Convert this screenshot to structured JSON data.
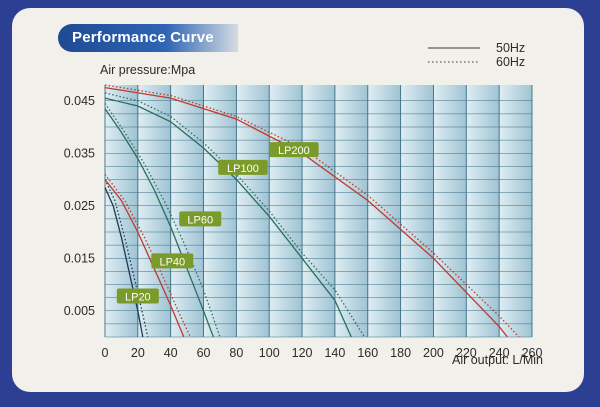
{
  "header": {
    "title": "Performance Curve"
  },
  "colors": {
    "background": "#2d3f93",
    "card": "#f2f0ea",
    "title_tab": "#1f4a93",
    "plot_light": "#dfeef3",
    "plot_dark": "#9fc3d3",
    "label_badge": "#7a9a2a",
    "curve_red": "#c0392b",
    "curve_green": "#2b6e5d",
    "curve_dark": "#1e3b52"
  },
  "chart_data": {
    "type": "line",
    "ylabel": "Air pressure:Mpa",
    "xlabel": "Air output: L/Min",
    "x_ticks": [
      "0",
      "20",
      "40",
      "60",
      "80",
      "100",
      "120",
      "140",
      "160",
      "180",
      "200",
      "220",
      "240",
      "260"
    ],
    "y_ticks": [
      "0.045",
      "0.035",
      "0.025",
      "0.015",
      "0.005"
    ],
    "xlim": [
      0,
      260
    ],
    "ylim": [
      0,
      0.048
    ],
    "grid": true,
    "legend": {
      "position": "top-right",
      "entries": [
        {
          "label": "50Hz",
          "style": "solid"
        },
        {
          "label": "60Hz",
          "style": "dotted"
        }
      ]
    },
    "series": [
      {
        "name": "LP20",
        "label_at": [
          20,
          0.0078
        ],
        "color": "#1e3b52",
        "curves": [
          {
            "style": "solid",
            "points": [
              [
                0,
                0.0285
              ],
              [
                5,
                0.025
              ],
              [
                10,
                0.019
              ],
              [
                15,
                0.012
              ],
              [
                20,
                0.005
              ],
              [
                23,
                0
              ]
            ]
          },
          {
            "style": "dotted",
            "points": [
              [
                0,
                0.03
              ],
              [
                6,
                0.026
              ],
              [
                12,
                0.019
              ],
              [
                18,
                0.011
              ],
              [
                24,
                0.003
              ],
              [
                26,
                0
              ]
            ]
          }
        ]
      },
      {
        "name": "LP40",
        "label_at": [
          41,
          0.0145
        ],
        "color": "#c0392b",
        "curves": [
          {
            "style": "solid",
            "points": [
              [
                0,
                0.03
              ],
              [
                10,
                0.026
              ],
              [
                20,
                0.02
              ],
              [
                30,
                0.013
              ],
              [
                40,
                0.006
              ],
              [
                48,
                0
              ]
            ]
          },
          {
            "style": "dotted",
            "points": [
              [
                0,
                0.031
              ],
              [
                12,
                0.026
              ],
              [
                24,
                0.019
              ],
              [
                36,
                0.011
              ],
              [
                46,
                0.004
              ],
              [
                52,
                0
              ]
            ]
          }
        ]
      },
      {
        "name": "LP60",
        "label_at": [
          58,
          0.0225
        ],
        "color": "#2b6e5d",
        "curves": [
          {
            "style": "solid",
            "points": [
              [
                0,
                0.0435
              ],
              [
                10,
                0.039
              ],
              [
                20,
                0.034
              ],
              [
                30,
                0.028
              ],
              [
                40,
                0.021
              ],
              [
                50,
                0.013
              ],
              [
                60,
                0.005
              ],
              [
                66,
                0
              ]
            ]
          },
          {
            "style": "dotted",
            "points": [
              [
                0,
                0.0445
              ],
              [
                12,
                0.039
              ],
              [
                24,
                0.033
              ],
              [
                36,
                0.026
              ],
              [
                48,
                0.018
              ],
              [
                60,
                0.009
              ],
              [
                70,
                0
              ]
            ]
          }
        ]
      },
      {
        "name": "LP100",
        "label_at": [
          84,
          0.0323
        ],
        "color": "#2b6e5d",
        "curves": [
          {
            "style": "solid",
            "points": [
              [
                0,
                0.0455
              ],
              [
                20,
                0.044
              ],
              [
                40,
                0.041
              ],
              [
                60,
                0.036
              ],
              [
                80,
                0.03
              ],
              [
                100,
                0.023
              ],
              [
                120,
                0.015
              ],
              [
                140,
                0.007
              ],
              [
                150,
                0
              ]
            ]
          },
          {
            "style": "dotted",
            "points": [
              [
                0,
                0.0465
              ],
              [
                20,
                0.045
              ],
              [
                40,
                0.042
              ],
              [
                60,
                0.037
              ],
              [
                80,
                0.031
              ],
              [
                100,
                0.024
              ],
              [
                120,
                0.016
              ],
              [
                140,
                0.009
              ],
              [
                158,
                0
              ]
            ]
          }
        ]
      },
      {
        "name": "LP200",
        "label_at": [
          115,
          0.0357
        ],
        "color": "#c0392b",
        "curves": [
          {
            "style": "solid",
            "points": [
              [
                0,
                0.0475
              ],
              [
                40,
                0.0455
              ],
              [
                80,
                0.0415
              ],
              [
                120,
                0.035
              ],
              [
                160,
                0.026
              ],
              [
                200,
                0.015
              ],
              [
                240,
                0.002
              ],
              [
                245,
                0
              ]
            ]
          },
          {
            "style": "dotted",
            "points": [
              [
                0,
                0.048
              ],
              [
                40,
                0.046
              ],
              [
                80,
                0.042
              ],
              [
                120,
                0.036
              ],
              [
                160,
                0.027
              ],
              [
                200,
                0.016
              ],
              [
                240,
                0.004
              ],
              [
                252,
                0
              ]
            ]
          }
        ]
      }
    ]
  }
}
